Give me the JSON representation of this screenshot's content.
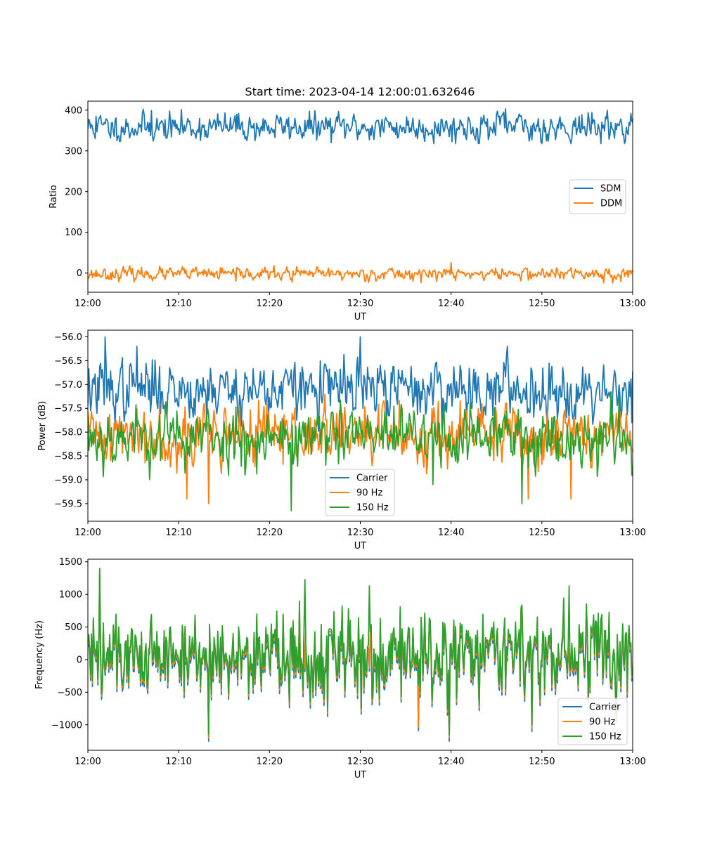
{
  "chart_data": [
    {
      "type": "line",
      "title": "Start time: 2023-04-14 12:00:01.632646",
      "xlabel": "UT",
      "ylabel": "Ratio",
      "xlim": [
        "12:00",
        "13:00"
      ],
      "x_tick_labels": [
        "12:00",
        "12:10",
        "12:20",
        "12:30",
        "12:40",
        "12:50",
        "13:00"
      ],
      "ylim": [
        -47,
        422
      ],
      "y_ticks": [
        0,
        100,
        200,
        300,
        400
      ],
      "y_tick_labels": [
        "0",
        "100",
        "200",
        "300",
        "400"
      ],
      "grid": false,
      "legend_position": "center-right",
      "series": [
        {
          "name": "SDM",
          "color": "#1f77b4",
          "mean": 358,
          "amplitude": 18,
          "min": 318,
          "max": 403,
          "spikes": [
            [
              0.9,
              385
            ],
            [
              7.0,
              399
            ],
            [
              16.2,
              386
            ],
            [
              46.0,
              403
            ],
            [
              48.9,
              327
            ],
            [
              59.8,
              392
            ]
          ],
          "samples": 600,
          "seed": 11
        },
        {
          "name": "DDM",
          "color": "#ff7f0e",
          "mean": -2,
          "amplitude": 8,
          "min": -25,
          "max": 26,
          "spikes": [
            [
              40.0,
              26
            ],
            [
              22.5,
              -22
            ],
            [
              56.8,
              -24
            ],
            [
              16.3,
              -20
            ]
          ],
          "samples": 600,
          "seed": 23
        }
      ]
    },
    {
      "type": "line",
      "title": "",
      "xlabel": "UT",
      "ylabel": "Power (dB)",
      "xlim": [
        "12:00",
        "13:00"
      ],
      "x_tick_labels": [
        "12:00",
        "12:10",
        "12:20",
        "12:30",
        "12:40",
        "12:50",
        "13:00"
      ],
      "ylim": [
        -59.87,
        -55.86
      ],
      "y_ticks": [
        -56.0,
        -56.5,
        -57.0,
        -57.5,
        -58.0,
        -58.5,
        -59.0,
        -59.5
      ],
      "y_tick_labels": [
        "−56.0",
        "−56.5",
        "−57.0",
        "−57.5",
        "−58.0",
        "−58.5",
        "−59.0",
        "−59.5"
      ],
      "grid": false,
      "legend_position": "lower-center",
      "series": [
        {
          "name": "Carrier",
          "color": "#1f77b4",
          "mean": -57.1,
          "amplitude": 0.32,
          "min": -58.1,
          "max": -56.0,
          "spikes": [
            [
              1.9,
              -56.0
            ],
            [
              30.0,
              -56.0
            ],
            [
              5.4,
              -56.2
            ],
            [
              59.9,
              -57.8
            ]
          ],
          "samples": 600,
          "seed": 37
        },
        {
          "name": "90 Hz",
          "color": "#ff7f0e",
          "mean": -58.05,
          "amplitude": 0.33,
          "min": -59.5,
          "max": -57.2,
          "spikes": [
            [
              10.9,
              -59.4
            ],
            [
              13.3,
              -59.5
            ],
            [
              48.5,
              -59.4
            ],
            [
              53.2,
              -59.4
            ]
          ],
          "samples": 600,
          "seed": 41
        },
        {
          "name": "150 Hz",
          "color": "#2ca02c",
          "mean": -58.1,
          "amplitude": 0.33,
          "min": -59.65,
          "max": -57.2,
          "spikes": [
            [
              22.4,
              -59.65
            ],
            [
              47.8,
              -59.5
            ],
            [
              57.6,
              -57.2
            ],
            [
              38.0,
              -59.1
            ]
          ],
          "samples": 600,
          "seed": 53
        }
      ]
    },
    {
      "type": "line",
      "title": "",
      "xlabel": "UT",
      "ylabel": "Frequency (Hz)",
      "xlim": [
        "12:00",
        "13:00"
      ],
      "x_tick_labels": [
        "12:00",
        "12:10",
        "12:20",
        "12:30",
        "12:40",
        "12:50",
        "13:00"
      ],
      "ylim": [
        -1390,
        1540
      ],
      "y_ticks": [
        -1000,
        -500,
        0,
        500,
        1000,
        1500
      ],
      "y_tick_labels": [
        "−1000",
        "−500",
        "0",
        "500",
        "1000",
        "1500"
      ],
      "grid": false,
      "legend_position": "lower-right",
      "series": [
        {
          "name": "Carrier",
          "color": "#1f77b4",
          "mean": -10,
          "amplitude": 330,
          "min": -1250,
          "max": 1300,
          "spikes": [
            [
              13.3,
              -1250
            ],
            [
              48.9,
              -1100
            ],
            [
              1.3,
              1300
            ],
            [
              36.4,
              -1090
            ]
          ],
          "samples": 600,
          "seed": 61,
          "lead": 0
        },
        {
          "name": "90 Hz",
          "color": "#ff7f0e",
          "mean": 40,
          "amplitude": 330,
          "min": -1200,
          "max": 1350,
          "spikes": [
            [
              13.3,
              -1200
            ],
            [
              48.9,
              -1050
            ],
            [
              1.3,
              1350
            ],
            [
              36.4,
              -1040
            ]
          ],
          "samples": 600,
          "seed": 61,
          "lead": 50
        },
        {
          "name": "150 Hz",
          "color": "#2ca02c",
          "mean": 80,
          "amplitude": 330,
          "min": -1150,
          "max": 1400,
          "spikes": [
            [
              13.3,
              -1150
            ],
            [
              48.9,
              -1000
            ],
            [
              1.3,
              1400
            ],
            [
              23.9,
              1230
            ],
            [
              31.0,
              1130
            ],
            [
              53.0,
              1130
            ]
          ],
          "samples": 600,
          "seed": 61,
          "lead": 90
        }
      ]
    }
  ]
}
